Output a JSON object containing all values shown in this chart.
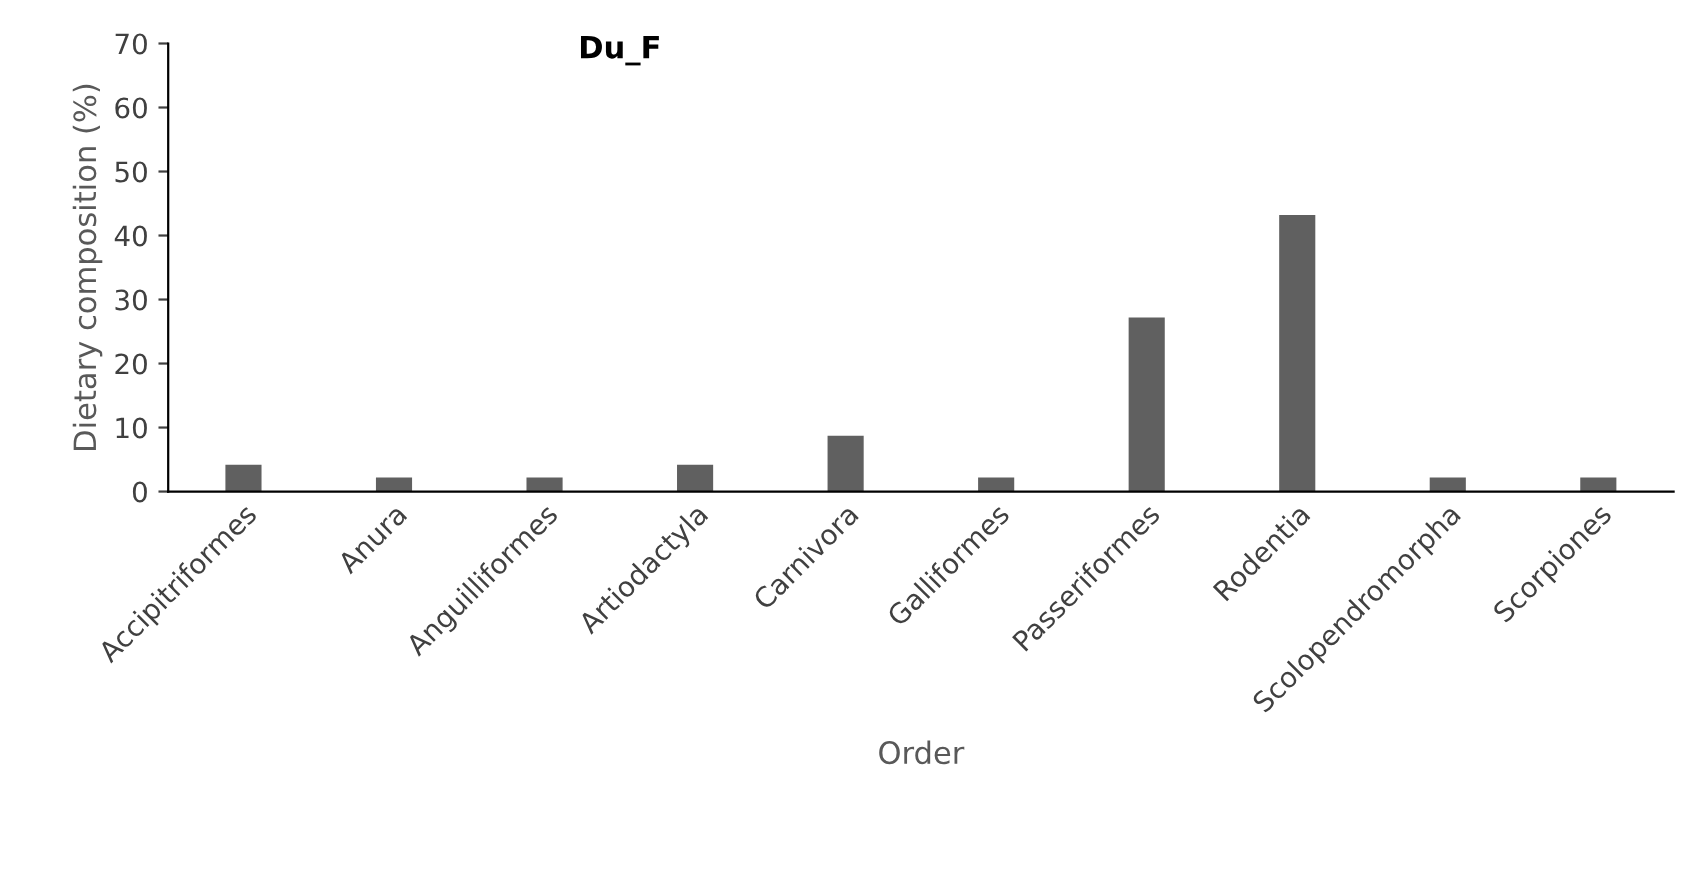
{
  "chart_data": {
    "type": "bar",
    "title": "Du_F",
    "xlabel": "Order",
    "ylabel": "Dietary composition (%)",
    "categories": [
      "Accipitriformes",
      "Anura",
      "Anguilliformes",
      "Artiodactyla",
      "Carnivora",
      "Galliformes",
      "Passeriformes",
      "Rodentia",
      "Scolopendromorpha",
      "Scorpiones"
    ],
    "values": [
      4.2,
      2.2,
      2.2,
      4.2,
      8.7,
      2.2,
      27.2,
      43.2,
      2.2,
      2.2
    ],
    "color": "#606060",
    "ylim": [
      0,
      70
    ],
    "yticks": [
      0,
      10,
      20,
      30,
      40,
      50,
      60,
      70
    ],
    "grid": false,
    "legend": false
  }
}
